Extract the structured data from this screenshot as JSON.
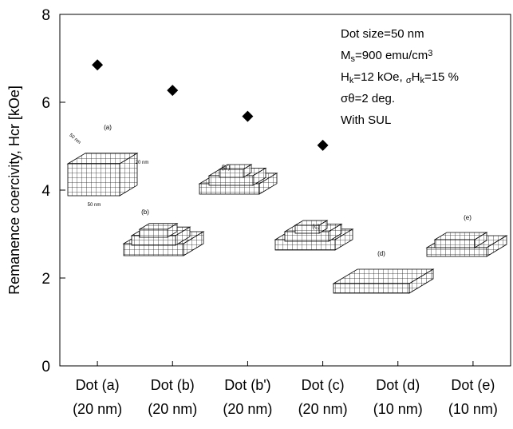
{
  "chart_data": {
    "type": "scatter",
    "y_label": "Remanence coercivity, Hcr [kOe]",
    "categories": [
      [
        "Dot (a)",
        "(20 nm)"
      ],
      [
        "Dot (b)",
        "(20 nm)"
      ],
      [
        "Dot (b')",
        "(20 nm)"
      ],
      [
        "Dot (c)",
        "(20 nm)"
      ],
      [
        "Dot (d)",
        "(10 nm)"
      ],
      [
        "Dot (e)",
        "(10 nm)"
      ]
    ],
    "values": [
      6.85,
      6.27,
      5.68,
      5.02,
      null,
      null
    ],
    "color": "#000000",
    "ylim": [
      0,
      8
    ],
    "yticks": [
      0,
      2,
      4,
      6,
      8
    ],
    "annotation": [
      [
        {
          "text": "Dot size=50 nm"
        }
      ],
      [
        {
          "text": "M"
        },
        {
          "text": "s",
          "sub": true
        },
        {
          "text": "=900 emu/cm"
        },
        {
          "text": "3",
          "sup": true
        }
      ],
      [
        {
          "text": "H"
        },
        {
          "text": "k",
          "sub": true
        },
        {
          "text": "=12 kOe, "
        },
        {
          "text": "σ",
          "sub": true
        },
        {
          "text": "H"
        },
        {
          "text": "k",
          "sub": true
        },
        {
          "text": "=15 %"
        }
      ],
      [
        {
          "text": "σθ=2 deg."
        }
      ],
      [
        {
          "text": "With SUL"
        }
      ]
    ],
    "inset_labels": [
      "(a)",
      "(b)",
      "(b')",
      "(c)",
      "(d)",
      "(e)"
    ],
    "inset_dimensions": [
      "20 nm",
      "50 nm",
      "50 nm"
    ]
  }
}
